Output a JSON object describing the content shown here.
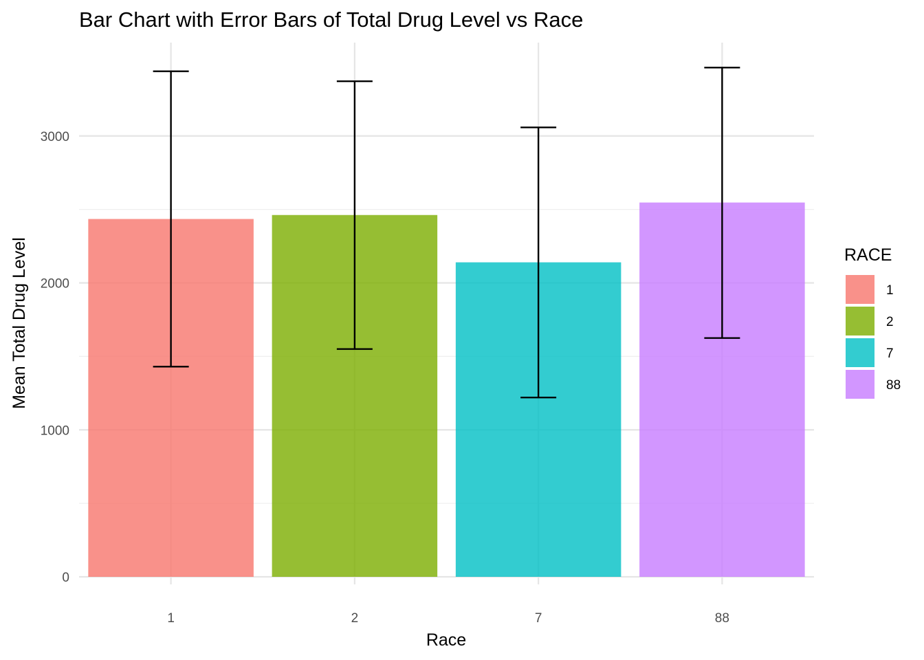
{
  "chart_data": {
    "type": "bar",
    "title": "Bar Chart with Error Bars of Total Drug Level vs Race",
    "xlabel": "Race",
    "ylabel": "Mean Total Drug Level",
    "categories": [
      "1",
      "2",
      "7",
      "88"
    ],
    "values": [
      2435,
      2462,
      2140,
      2547
    ],
    "error_lower": [
      1430,
      1550,
      1220,
      1625
    ],
    "error_upper": [
      3440,
      3372,
      3058,
      3465
    ],
    "ylim": [
      0,
      3500
    ],
    "yticks": [
      0,
      1000,
      2000,
      3000
    ],
    "grid": true,
    "legend": {
      "title": "RACE",
      "placement": "right",
      "entries": [
        "1",
        "2",
        "7",
        "88"
      ]
    },
    "colors": [
      "#F8766D",
      "#7CAE00",
      "#00BFC4",
      "#C77CFF"
    ]
  }
}
